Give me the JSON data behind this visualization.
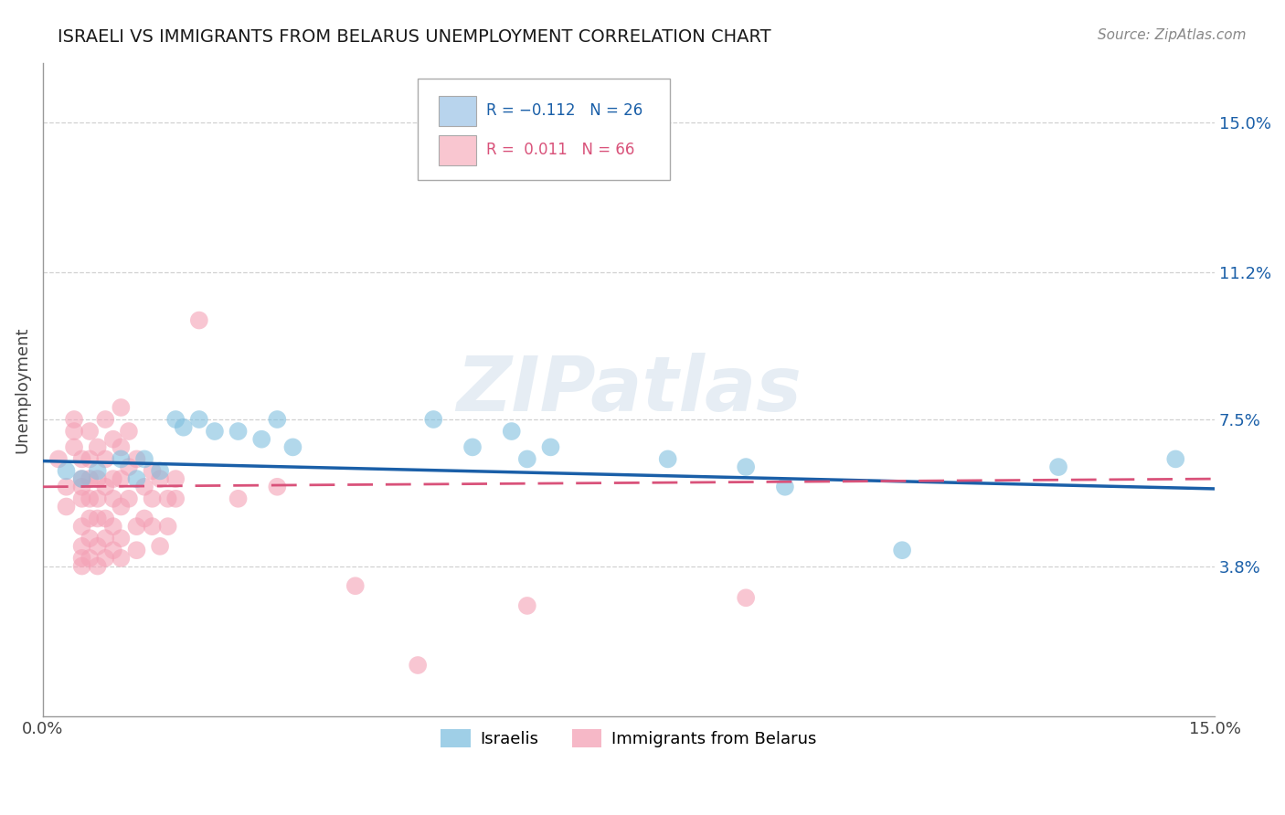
{
  "title": "ISRAELI VS IMMIGRANTS FROM BELARUS UNEMPLOYMENT CORRELATION CHART",
  "source": "Source: ZipAtlas.com",
  "ylabel": "Unemployment",
  "ytick_labels": [
    "15.0%",
    "11.2%",
    "7.5%",
    "3.8%"
  ],
  "ytick_values": [
    0.15,
    0.112,
    0.075,
    0.038
  ],
  "xlim": [
    0.0,
    0.15
  ],
  "ylim": [
    0.0,
    0.165
  ],
  "watermark": "ZIPatlas",
  "israeli_color": "#7fbfdf",
  "immigrants_color": "#f4a0b5",
  "israeli_line_color": "#1a5fa8",
  "immigrants_line_color": "#d9527a",
  "grid_color": "#cccccc",
  "legend_box_color_1": "#b8d4ed",
  "legend_box_color_2": "#f9c6d0",
  "israeli_scatter": [
    [
      0.003,
      0.062
    ],
    [
      0.005,
      0.06
    ],
    [
      0.007,
      0.062
    ],
    [
      0.01,
      0.065
    ],
    [
      0.012,
      0.06
    ],
    [
      0.013,
      0.065
    ],
    [
      0.015,
      0.062
    ],
    [
      0.017,
      0.075
    ],
    [
      0.018,
      0.073
    ],
    [
      0.02,
      0.075
    ],
    [
      0.022,
      0.072
    ],
    [
      0.025,
      0.072
    ],
    [
      0.028,
      0.07
    ],
    [
      0.03,
      0.075
    ],
    [
      0.032,
      0.068
    ],
    [
      0.05,
      0.075
    ],
    [
      0.055,
      0.068
    ],
    [
      0.06,
      0.072
    ],
    [
      0.062,
      0.065
    ],
    [
      0.065,
      0.068
    ],
    [
      0.08,
      0.065
    ],
    [
      0.09,
      0.063
    ],
    [
      0.095,
      0.058
    ],
    [
      0.11,
      0.042
    ],
    [
      0.13,
      0.063
    ],
    [
      0.145,
      0.065
    ]
  ],
  "immigrants_scatter": [
    [
      0.002,
      0.065
    ],
    [
      0.003,
      0.058
    ],
    [
      0.003,
      0.053
    ],
    [
      0.004,
      0.075
    ],
    [
      0.004,
      0.072
    ],
    [
      0.004,
      0.068
    ],
    [
      0.005,
      0.065
    ],
    [
      0.005,
      0.06
    ],
    [
      0.005,
      0.058
    ],
    [
      0.005,
      0.055
    ],
    [
      0.005,
      0.048
    ],
    [
      0.005,
      0.043
    ],
    [
      0.005,
      0.04
    ],
    [
      0.005,
      0.038
    ],
    [
      0.006,
      0.072
    ],
    [
      0.006,
      0.065
    ],
    [
      0.006,
      0.06
    ],
    [
      0.006,
      0.055
    ],
    [
      0.006,
      0.05
    ],
    [
      0.006,
      0.045
    ],
    [
      0.006,
      0.04
    ],
    [
      0.007,
      0.068
    ],
    [
      0.007,
      0.06
    ],
    [
      0.007,
      0.055
    ],
    [
      0.007,
      0.05
    ],
    [
      0.007,
      0.043
    ],
    [
      0.007,
      0.038
    ],
    [
      0.008,
      0.075
    ],
    [
      0.008,
      0.065
    ],
    [
      0.008,
      0.058
    ],
    [
      0.008,
      0.05
    ],
    [
      0.008,
      0.045
    ],
    [
      0.008,
      0.04
    ],
    [
      0.009,
      0.07
    ],
    [
      0.009,
      0.06
    ],
    [
      0.009,
      0.055
    ],
    [
      0.009,
      0.048
    ],
    [
      0.009,
      0.042
    ],
    [
      0.01,
      0.078
    ],
    [
      0.01,
      0.068
    ],
    [
      0.01,
      0.06
    ],
    [
      0.01,
      0.053
    ],
    [
      0.01,
      0.045
    ],
    [
      0.01,
      0.04
    ],
    [
      0.011,
      0.072
    ],
    [
      0.011,
      0.063
    ],
    [
      0.011,
      0.055
    ],
    [
      0.012,
      0.065
    ],
    [
      0.012,
      0.048
    ],
    [
      0.012,
      0.042
    ],
    [
      0.013,
      0.058
    ],
    [
      0.013,
      0.05
    ],
    [
      0.014,
      0.062
    ],
    [
      0.014,
      0.055
    ],
    [
      0.014,
      0.048
    ],
    [
      0.015,
      0.06
    ],
    [
      0.015,
      0.043
    ],
    [
      0.016,
      0.055
    ],
    [
      0.016,
      0.048
    ],
    [
      0.017,
      0.06
    ],
    [
      0.017,
      0.055
    ],
    [
      0.02,
      0.1
    ],
    [
      0.025,
      0.055
    ],
    [
      0.03,
      0.058
    ],
    [
      0.04,
      0.033
    ],
    [
      0.048,
      0.013
    ],
    [
      0.062,
      0.028
    ],
    [
      0.09,
      0.03
    ]
  ],
  "bg_color": "#ffffff"
}
